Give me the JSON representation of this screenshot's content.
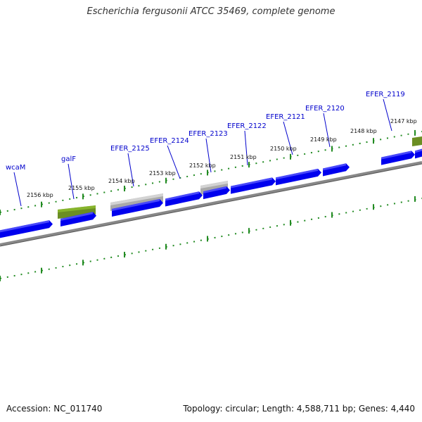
{
  "header": {
    "title": "Escherichia fergusonii ATCC 35469, complete genome"
  },
  "footer": {
    "accession": "Accession: NC_011740",
    "summary": "Topology: circular; Length: 4,588,711 bp; Genes: 4,440"
  },
  "colors": {
    "cds": "#0000ee",
    "cds_highlight": "#6666ff",
    "rna": "#6b8e23",
    "pseudo": "#a9a9a9",
    "backbone": "#777777",
    "ticks": "#228b22",
    "label": "#0000cc"
  },
  "kbp_ticks": [
    {
      "label": "2147 kbp"
    },
    {
      "label": "2148 kbp"
    },
    {
      "label": "2149 kbp"
    },
    {
      "label": "2150 kbp"
    },
    {
      "label": "2151 kbp"
    },
    {
      "label": "2152 kbp"
    },
    {
      "label": "2153 kbp"
    },
    {
      "label": "2154 kbp"
    },
    {
      "label": "2155 kbp"
    },
    {
      "label": "2156 kbp"
    }
  ],
  "gene_labels": [
    {
      "label": "EFER_2119"
    },
    {
      "label": "EFER_2120"
    },
    {
      "label": "EFER_2121"
    },
    {
      "label": "EFER_2122"
    },
    {
      "label": "EFER_2123"
    },
    {
      "label": "EFER_2124"
    },
    {
      "label": "EFER_2125"
    },
    {
      "label": "galF"
    },
    {
      "label": "wcaM"
    }
  ]
}
